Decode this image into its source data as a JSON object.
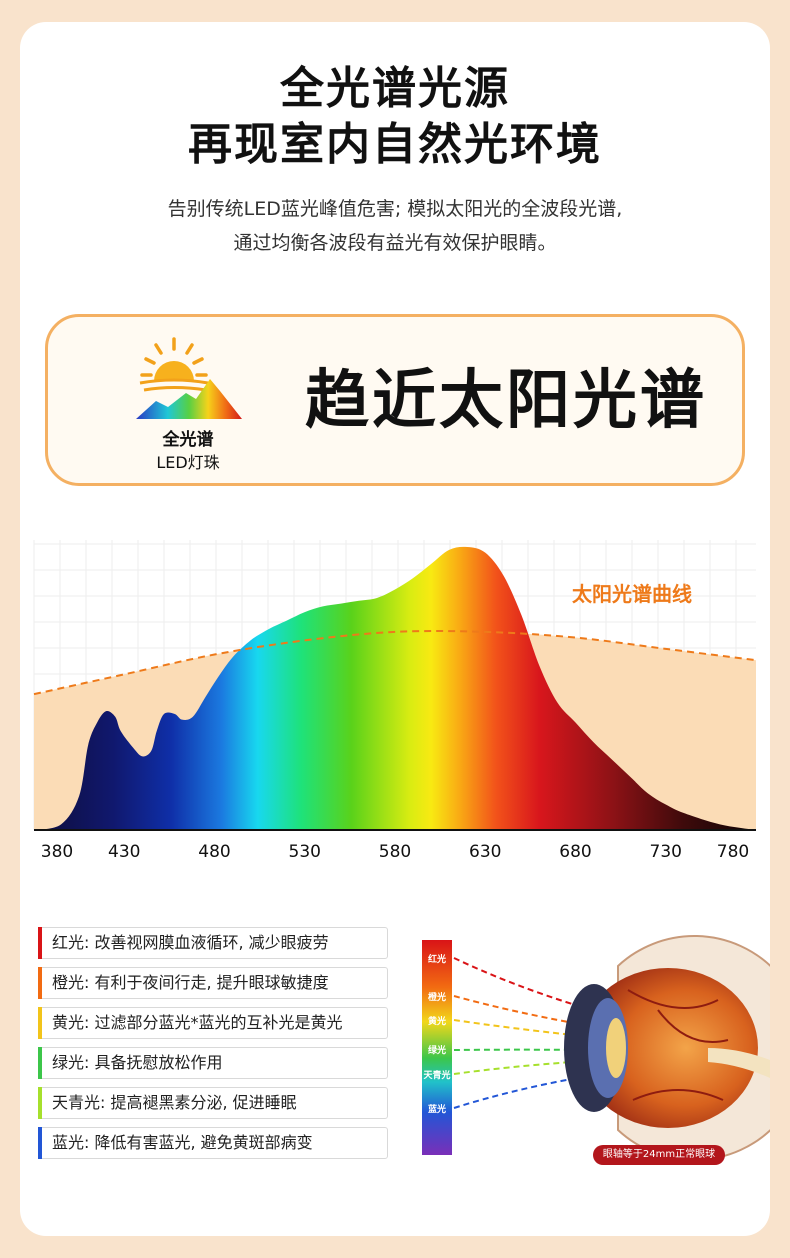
{
  "header": {
    "title_line1": "全光谱光源",
    "title_line2": "再现室内自然光环境",
    "subtitle_line1": "告别传统LED蓝光峰值危害; 模拟太阳光的全波段光谱,",
    "subtitle_line2": "通过均衡各波段有益光有效保护眼睛。"
  },
  "badge": {
    "icon": "sun-mountain-icon",
    "label_line1": "全光谱",
    "label_line2": "LED灯珠",
    "headline": "趋近太阳光谱"
  },
  "chart_data": {
    "type": "area",
    "xlabel": "",
    "ylabel": "",
    "x_ticks": [
      "380",
      "430",
      "480",
      "530",
      "580",
      "630",
      "680",
      "730",
      "780"
    ],
    "xlim": [
      380,
      780
    ],
    "ylim": [
      0,
      1
    ],
    "series": [
      {
        "name": "",
        "x": [
          380,
          395,
          405,
          410,
          415,
          420,
          425,
          428,
          435,
          440,
          445,
          448,
          452,
          458,
          462,
          468,
          475,
          482,
          490,
          500,
          510,
          520,
          530,
          540,
          550,
          560,
          570,
          580,
          590,
          600,
          610,
          620,
          630,
          640,
          650,
          660,
          670,
          680,
          690,
          700,
          710,
          720,
          730,
          740,
          760,
          780
        ],
        "y": [
          0.0,
          0.02,
          0.12,
          0.3,
          0.38,
          0.42,
          0.4,
          0.35,
          0.29,
          0.26,
          0.28,
          0.35,
          0.41,
          0.41,
          0.39,
          0.4,
          0.47,
          0.54,
          0.61,
          0.67,
          0.71,
          0.74,
          0.77,
          0.79,
          0.8,
          0.81,
          0.82,
          0.85,
          0.89,
          0.94,
          0.99,
          1.0,
          0.98,
          0.9,
          0.76,
          0.58,
          0.45,
          0.38,
          0.31,
          0.25,
          0.19,
          0.13,
          0.09,
          0.06,
          0.02,
          0.0
        ]
      },
      {
        "name": "太阳光谱曲线",
        "x": [
          380,
          430,
          480,
          530,
          580,
          630,
          680,
          730,
          780
        ],
        "y": [
          0.48,
          0.55,
          0.62,
          0.67,
          0.7,
          0.7,
          0.68,
          0.64,
          0.6
        ]
      }
    ],
    "annotation": "太阳光谱曲线"
  },
  "benefits": [
    {
      "text": "红光: 改善视网膜血液循环, 减少眼疲劳",
      "color": "#d91417"
    },
    {
      "text": "橙光: 有利于夜间行走, 提升眼球敏捷度",
      "color": "#f26b12"
    },
    {
      "text": "黄光: 过滤部分蓝光*蓝光的互补光是黄光",
      "color": "#f2c41a"
    },
    {
      "text": "绿光: 具备抚慰放松作用",
      "color": "#3cc64a"
    },
    {
      "text": "天青光: 提高褪黑素分泌, 促进睡眠",
      "color": "#a6e02c"
    },
    {
      "text": "蓝光: 降低有害蓝光, 避免黄斑部病变",
      "color": "#2256d6"
    }
  ],
  "eye_diagram": {
    "icon": "eyeball-icon",
    "spectrum_labels": [
      "红光",
      "橙光",
      "黄光",
      "绿光",
      "天青光",
      "蓝光"
    ],
    "caption": "眼轴等于24mm正常眼球"
  }
}
